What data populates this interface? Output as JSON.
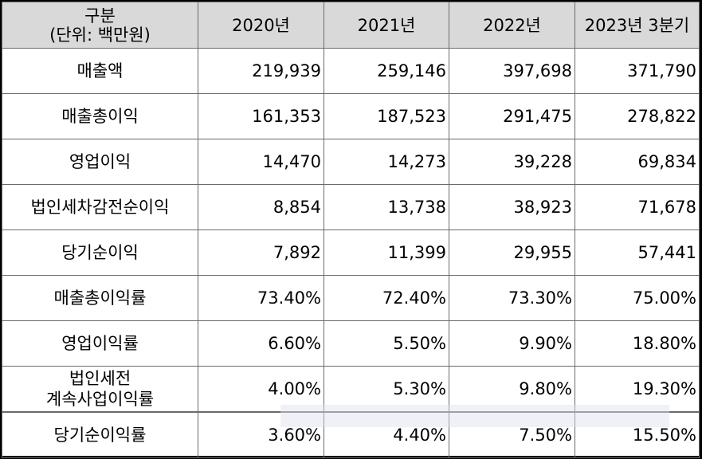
{
  "table": {
    "header": {
      "label_line1": "구분",
      "label_line2": "(단위: 백만원)",
      "columns": [
        "2020년",
        "2021년",
        "2022년",
        "2023년 3분기"
      ]
    },
    "rows": [
      {
        "label": "매출액",
        "values": [
          "219,939",
          "259,146",
          "397,698",
          "371,790"
        ]
      },
      {
        "label": "매출총이익",
        "values": [
          "161,353",
          "187,523",
          "291,475",
          "278,822"
        ]
      },
      {
        "label": "영업이익",
        "values": [
          "14,470",
          "14,273",
          "39,228",
          "69,834"
        ]
      },
      {
        "label": "법인세차감전순이익",
        "values": [
          "8,854",
          "13,738",
          "38,923",
          "71,678"
        ]
      },
      {
        "label": "당기순이익",
        "values": [
          "7,892",
          "11,399",
          "29,955",
          "57,441"
        ]
      },
      {
        "label": "매출총이익률",
        "values": [
          "73.40%",
          "72.40%",
          "73.30%",
          "75.00%"
        ]
      },
      {
        "label": "영업이익률",
        "values": [
          "6.60%",
          "5.50%",
          "9.90%",
          "18.80%"
        ]
      },
      {
        "label_line1": "법인세전",
        "label_line2": "계속사업이익률",
        "values": [
          "4.00%",
          "5.30%",
          "9.80%",
          "19.30%"
        ]
      },
      {
        "label": "당기순이익률",
        "values": [
          "3.60%",
          "4.40%",
          "7.50%",
          "15.50%"
        ]
      }
    ]
  }
}
